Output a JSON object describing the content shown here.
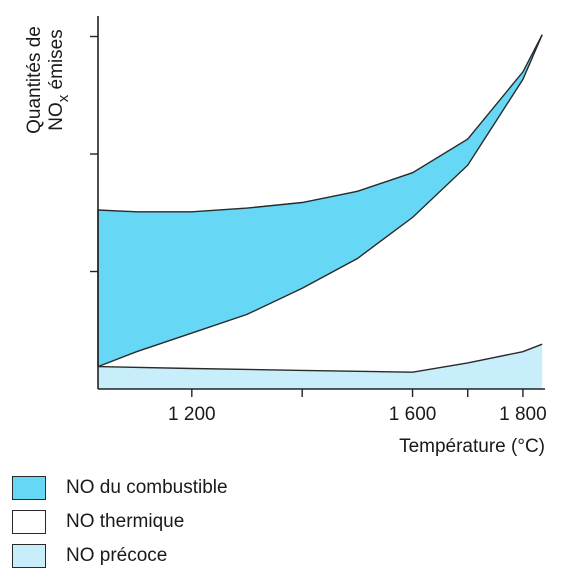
{
  "chart_data": {
    "type": "area",
    "title": "",
    "xlabel": "Température (°C)",
    "ylabel_line1": "Quantités de",
    "ylabel_line2_main": "NO",
    "ylabel_line2_sub": "x",
    "ylabel_line2_rest": " émises",
    "xlim": [
      1030,
      1840
    ],
    "ylim": [
      0,
      1
    ],
    "x_ticks": [
      {
        "value": 1200,
        "label": "1 200"
      },
      {
        "value": 1600,
        "label": "1 600"
      },
      {
        "value": 1800,
        "label": "1 800"
      }
    ],
    "x_minor_ticks": [
      1400,
      1700
    ],
    "y_ticks": [
      0.315,
      0.63,
      0.945
    ],
    "grid": false,
    "legend_position": "bottom-left",
    "series": [
      {
        "name": "NO du combustible",
        "color": "#66d7f5",
        "x": [
          1030,
          1100,
          1200,
          1300,
          1400,
          1500,
          1600,
          1700,
          1800,
          1835
        ],
        "lower": [
          0.06,
          0.1,
          0.15,
          0.2,
          0.27,
          0.35,
          0.46,
          0.6,
          0.83,
          0.95
        ],
        "upper": [
          0.48,
          0.475,
          0.475,
          0.485,
          0.5,
          0.53,
          0.58,
          0.67,
          0.85,
          0.95
        ]
      },
      {
        "name": "NO thermique",
        "color": "#ffffff",
        "x": [
          1030,
          1835
        ],
        "lower": [
          0.06,
          0.12
        ],
        "upper": [
          0.06,
          0.95
        ]
      },
      {
        "name": "NO précoce",
        "color": "#c9eefb",
        "x": [
          1030,
          1200,
          1400,
          1600,
          1700,
          1800,
          1835
        ],
        "lower": [
          0,
          0,
          0,
          0,
          0,
          0,
          0
        ],
        "upper": [
          0.06,
          0.055,
          0.05,
          0.045,
          0.07,
          0.1,
          0.12
        ]
      }
    ]
  },
  "legend": {
    "items": [
      {
        "label": "NO du combustible",
        "color": "#66d7f5"
      },
      {
        "label": "NO thermique",
        "color": "#ffffff"
      },
      {
        "label": "NO précoce",
        "color": "#c9eefb"
      }
    ]
  }
}
